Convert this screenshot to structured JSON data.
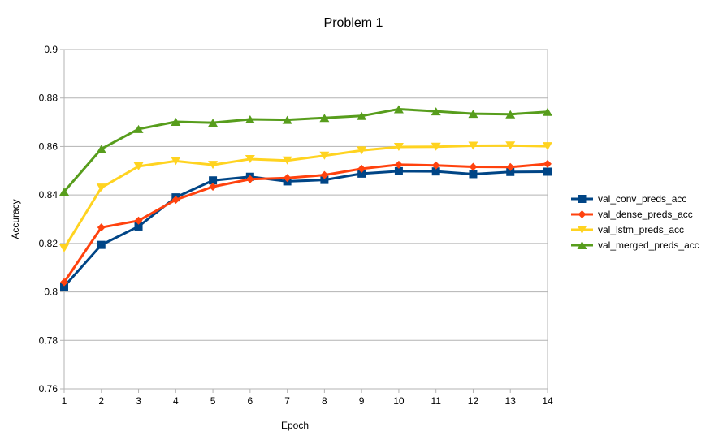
{
  "chart_data": {
    "type": "line",
    "title": "Problem 1",
    "xlabel": "Epoch",
    "ylabel": "Accuracy",
    "x": [
      1,
      2,
      3,
      4,
      5,
      6,
      7,
      8,
      9,
      10,
      11,
      12,
      13,
      14
    ],
    "ylim": [
      0.76,
      0.9
    ],
    "yticks": [
      "0.76",
      "0.78",
      "0.8",
      "0.82",
      "0.84",
      "0.86",
      "0.88",
      "0.9"
    ],
    "grid": "horizontal",
    "legend_position": "right",
    "series": [
      {
        "name": "val_conv_preds_acc",
        "color": "#004586",
        "marker": "square",
        "values": [
          0.8022,
          0.8194,
          0.827,
          0.839,
          0.846,
          0.8475,
          0.8456,
          0.8462,
          0.8488,
          0.8498,
          0.8497,
          0.8486,
          0.8495,
          0.8496
        ]
      },
      {
        "name": "val_dense_preds_acc",
        "color": "#ff420e",
        "marker": "diamond",
        "values": [
          0.804,
          0.8266,
          0.8294,
          0.838,
          0.8434,
          0.8465,
          0.847,
          0.8482,
          0.8508,
          0.8525,
          0.8522,
          0.8516,
          0.8515,
          0.8528
        ]
      },
      {
        "name": "val_lstm_preds_acc",
        "color": "#ffd320",
        "marker": "triangle-down",
        "values": [
          0.818,
          0.843,
          0.8518,
          0.854,
          0.8524,
          0.8548,
          0.8542,
          0.8562,
          0.8584,
          0.8598,
          0.8599,
          0.8603,
          0.8604,
          0.8601
        ]
      },
      {
        "name": "val_merged_preds_acc",
        "color": "#579d1c",
        "marker": "triangle-up",
        "values": [
          0.8414,
          0.859,
          0.8672,
          0.8702,
          0.8698,
          0.8712,
          0.871,
          0.8718,
          0.8726,
          0.8754,
          0.8745,
          0.8735,
          0.8733,
          0.8743
        ]
      }
    ]
  }
}
